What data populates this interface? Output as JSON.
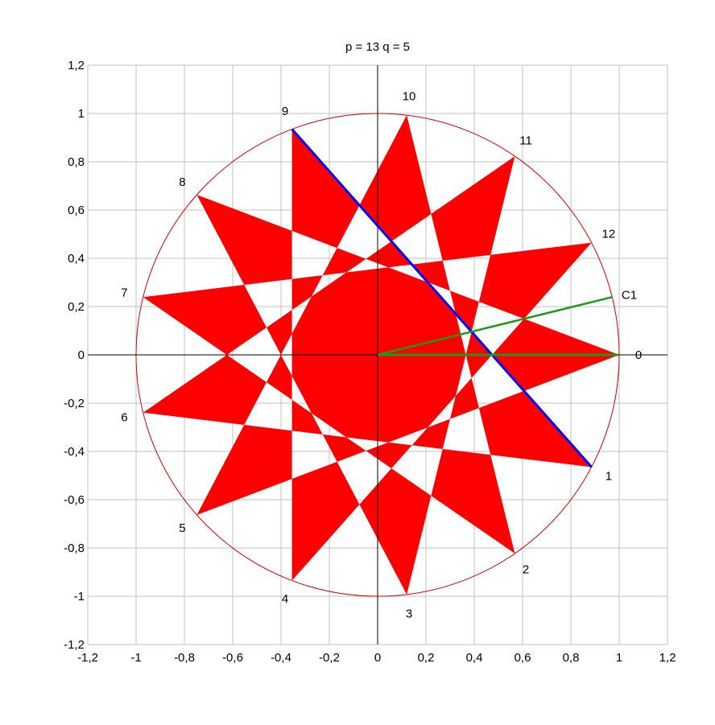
{
  "title": "p = 13   q = 5",
  "chart_data": {
    "type": "star_polygon",
    "p": 13,
    "q": 5,
    "radius": 1,
    "xlim": [
      -1.2,
      1.2
    ],
    "ylim": [
      -1.2,
      1.2
    ],
    "x_ticks": [
      "-1,2",
      "-1",
      "-0,8",
      "-0,6",
      "-0,4",
      "-0,2",
      "0",
      "0,2",
      "0,4",
      "0,6",
      "0,8",
      "1",
      "1,2"
    ],
    "y_ticks": [
      "-1,2",
      "-1",
      "-0,8",
      "-0,6",
      "-0,4",
      "-0,2",
      "0",
      "0,2",
      "0,4",
      "0,6",
      "0,8",
      "1",
      "1,2"
    ],
    "tick_values": [
      -1.2,
      -1,
      -0.8,
      -0.6,
      -0.4,
      -0.2,
      0,
      0.2,
      0.4,
      0.6,
      0.8,
      1,
      1.2
    ],
    "vertex_labels": [
      "0",
      "1",
      "2",
      "3",
      "4",
      "5",
      "6",
      "7",
      "8",
      "9",
      "10",
      "11",
      "12"
    ],
    "highlight_segment": {
      "from": 9,
      "to": 1
    },
    "green_point_label": "C1",
    "green_point_angle_fraction": 0.5,
    "grid": true,
    "colors": {
      "fill": "#ff0000",
      "circle": "#d40000",
      "grid": "#c0c0c0",
      "axes": "#000000",
      "segment": "#0000ff",
      "green": "#1a9a1a"
    }
  }
}
